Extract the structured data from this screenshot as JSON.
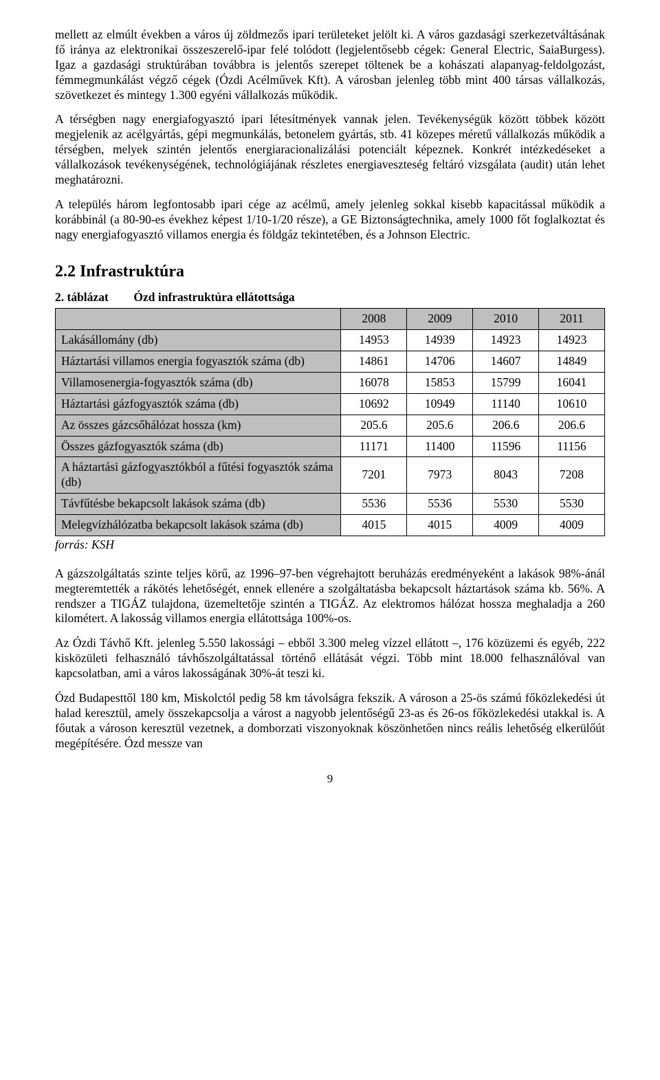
{
  "paragraphs": {
    "p1": "mellett az elmúlt években a város új zöldmezős ipari területeket jelölt ki. A város gazdasági szerkezetváltásának fő iránya az elektronikai összeszerelő-ipar felé tolódott (legjelentősebb cégek: General Electric, SaiaBurgess). Igaz a gazdasági struktúrában továbbra is jelentős szerepet töltenek be a kohászati alapanyag-feldolgozást, fémmegmunkálást végző cégek (Ózdi Acélművek Kft). A városban jelenleg több mint 400 társas vállalkozás, szövetkezet és mintegy 1.300 egyéni vállalkozás működik.",
    "p2": "A térségben nagy energiafogyasztó ipari létesítmények vannak jelen. Tevékenységük között többek között megjelenik az acélgyártás, gépi megmunkálás, betonelem gyártás, stb. 41 közepes méretű vállalkozás működik a térségben, melyek szintén jelentős energiaracionalizálási potenciált képeznek. Konkrét intézkedéseket a vállalkozások tevékenységének, technológiájának részletes energiaveszteség feltáró vizsgálata (audit) után lehet meghatározni.",
    "p3": "A település három legfontosabb ipari cége az acélmű, amely jelenleg sokkal kisebb kapacitással működik a korábbinál (a 80-90-es évekhez képest 1/10-1/20 része), a GE Biztonságtechnika, amely 1000 főt foglalkoztat és nagy energiafogyasztó villamos energia és földgáz tekintetében, és a Johnson Electric.",
    "p4": "A gázszolgáltatás szinte teljes körű, az 1996–97-ben végrehajtott beruházás eredményeként a lakások 98%-ánál megteremtették a rákötés lehetőségét, ennek ellenére a szolgáltatásba bekapcsolt háztartások száma kb. 56%. A rendszer a TIGÁZ tulajdona, üzemeltetője szintén a TIGÁZ. Az elektromos hálózat hossza meghaladja a 260 kilométert. A lakosság villamos energia ellátottsága 100%-os.",
    "p5": "Az Ózdi Távhő Kft. jelenleg 5.550 lakossági – ebből 3.300 meleg vízzel ellátott –, 176 közüzemi és egyéb, 222 kisközületi felhasználó távhőszolgáltatással történő ellátását végzi. Több mint 18.000 felhasználóval van kapcsolatban, ami a város lakosságának 30%-át teszi ki.",
    "p6": "Ózd Budapesttől 180 km, Miskolctól pedig 58 km távolságra fekszik. A városon a 25-ös számú főközlekedési út halad keresztül, amely összekapcsolja a várost a nagyobb jelentőségű 23-as és 26-os főközlekedési utakkal is. A főutak a városon keresztül vezetnek, a domborzati viszonyoknak köszönhetően nincs reális lehetőség elkerülőút megépítésére. Ózd messze van"
  },
  "section_heading": "2.2  Infrastruktúra",
  "table": {
    "caption_num": "2. táblázat",
    "caption_title": "Ózd infrastruktúra ellátottsága",
    "header_bg": "#bfbfbf",
    "cell_bg": "#ffffff",
    "border_color": "#000000",
    "years": [
      "2008",
      "2009",
      "2010",
      "2011"
    ],
    "rows": [
      {
        "label": "Lakásállomány (db)",
        "vals": [
          "14953",
          "14939",
          "14923",
          "14923"
        ]
      },
      {
        "label": "Háztartási villamos energia fogyasztók száma (db)",
        "vals": [
          "14861",
          "14706",
          "14607",
          "14849"
        ]
      },
      {
        "label": "Villamosenergia-fogyasztók száma (db)",
        "vals": [
          "16078",
          "15853",
          "15799",
          "16041"
        ]
      },
      {
        "label": "Háztartási gázfogyasztók száma (db)",
        "vals": [
          "10692",
          "10949",
          "11140",
          "10610"
        ]
      },
      {
        "label": "Az összes gázcsőhálózat hossza (km)",
        "vals": [
          "205.6",
          "205.6",
          "206.6",
          "206.6"
        ]
      },
      {
        "label": "Összes gázfogyasztók száma (db)",
        "vals": [
          "11171",
          "11400",
          "11596",
          "11156"
        ]
      },
      {
        "label": "A háztartási gázfogyasztókból a fűtési fogyasztók száma (db)",
        "vals": [
          "7201",
          "7973",
          "8043",
          "7208"
        ]
      },
      {
        "label": "Távfűtésbe bekapcsolt lakások száma (db)",
        "vals": [
          "5536",
          "5536",
          "5530",
          "5530"
        ]
      },
      {
        "label": "Melegvízhálózatba bekapcsolt lakások száma (db)",
        "vals": [
          "4015",
          "4015",
          "4009",
          "4009"
        ]
      }
    ],
    "source": "forrás: KSH"
  },
  "page_number": "9"
}
